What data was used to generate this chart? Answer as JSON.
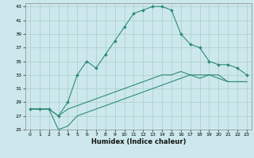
{
  "title": "",
  "xlabel": "Humidex (Indice chaleur)",
  "bg_color": "#cce8ec",
  "grid_color": "#aacccc",
  "line_color": "#2e8b78",
  "xlim": [
    -0.5,
    23.5
  ],
  "ylim": [
    25,
    43.5
  ],
  "xticks": [
    0,
    1,
    2,
    3,
    4,
    5,
    6,
    7,
    8,
    9,
    10,
    11,
    12,
    13,
    14,
    15,
    16,
    17,
    18,
    19,
    20,
    21,
    22,
    23
  ],
  "yticks": [
    25,
    27,
    29,
    31,
    33,
    35,
    37,
    39,
    41,
    43
  ],
  "line1_x": [
    0,
    1,
    2,
    3,
    4,
    5,
    6,
    7,
    8,
    9,
    10,
    11,
    12,
    13,
    14,
    15,
    16,
    17,
    18,
    19,
    20,
    21,
    22,
    23
  ],
  "line1_y": [
    28,
    28,
    28,
    27,
    29,
    33,
    35,
    34,
    36,
    38,
    40,
    42,
    42.5,
    43,
    43,
    42.5,
    39,
    37.5,
    37,
    35,
    34.5,
    34.5,
    34,
    33
  ],
  "line2_x": [
    0,
    1,
    2,
    3,
    4,
    5,
    6,
    7,
    8,
    9,
    10,
    11,
    12,
    13,
    14,
    15,
    16,
    17,
    18,
    19,
    20,
    21,
    22,
    23
  ],
  "line2_y": [
    28,
    28,
    28,
    25,
    25.5,
    27,
    27.5,
    28,
    28.5,
    29,
    29.5,
    30,
    30.5,
    31,
    31.5,
    32,
    32.5,
    33,
    33,
    33,
    33,
    32,
    32,
    32
  ],
  "line3_x": [
    0,
    1,
    2,
    3,
    4,
    5,
    6,
    7,
    8,
    9,
    10,
    11,
    12,
    13,
    14,
    15,
    16,
    17,
    18,
    19,
    20,
    21,
    22,
    23
  ],
  "line3_y": [
    28,
    28,
    28,
    27,
    28,
    28.5,
    29,
    29.5,
    30,
    30.5,
    31,
    31.5,
    32,
    32.5,
    33,
    33,
    33.5,
    33,
    32.5,
    33,
    32.5,
    32,
    32,
    32
  ],
  "label_fontsize": 5.5,
  "xlabel_fontsize": 6.0,
  "tick_fontsize": 4.5,
  "linewidth": 0.8,
  "markersize": 2.0
}
